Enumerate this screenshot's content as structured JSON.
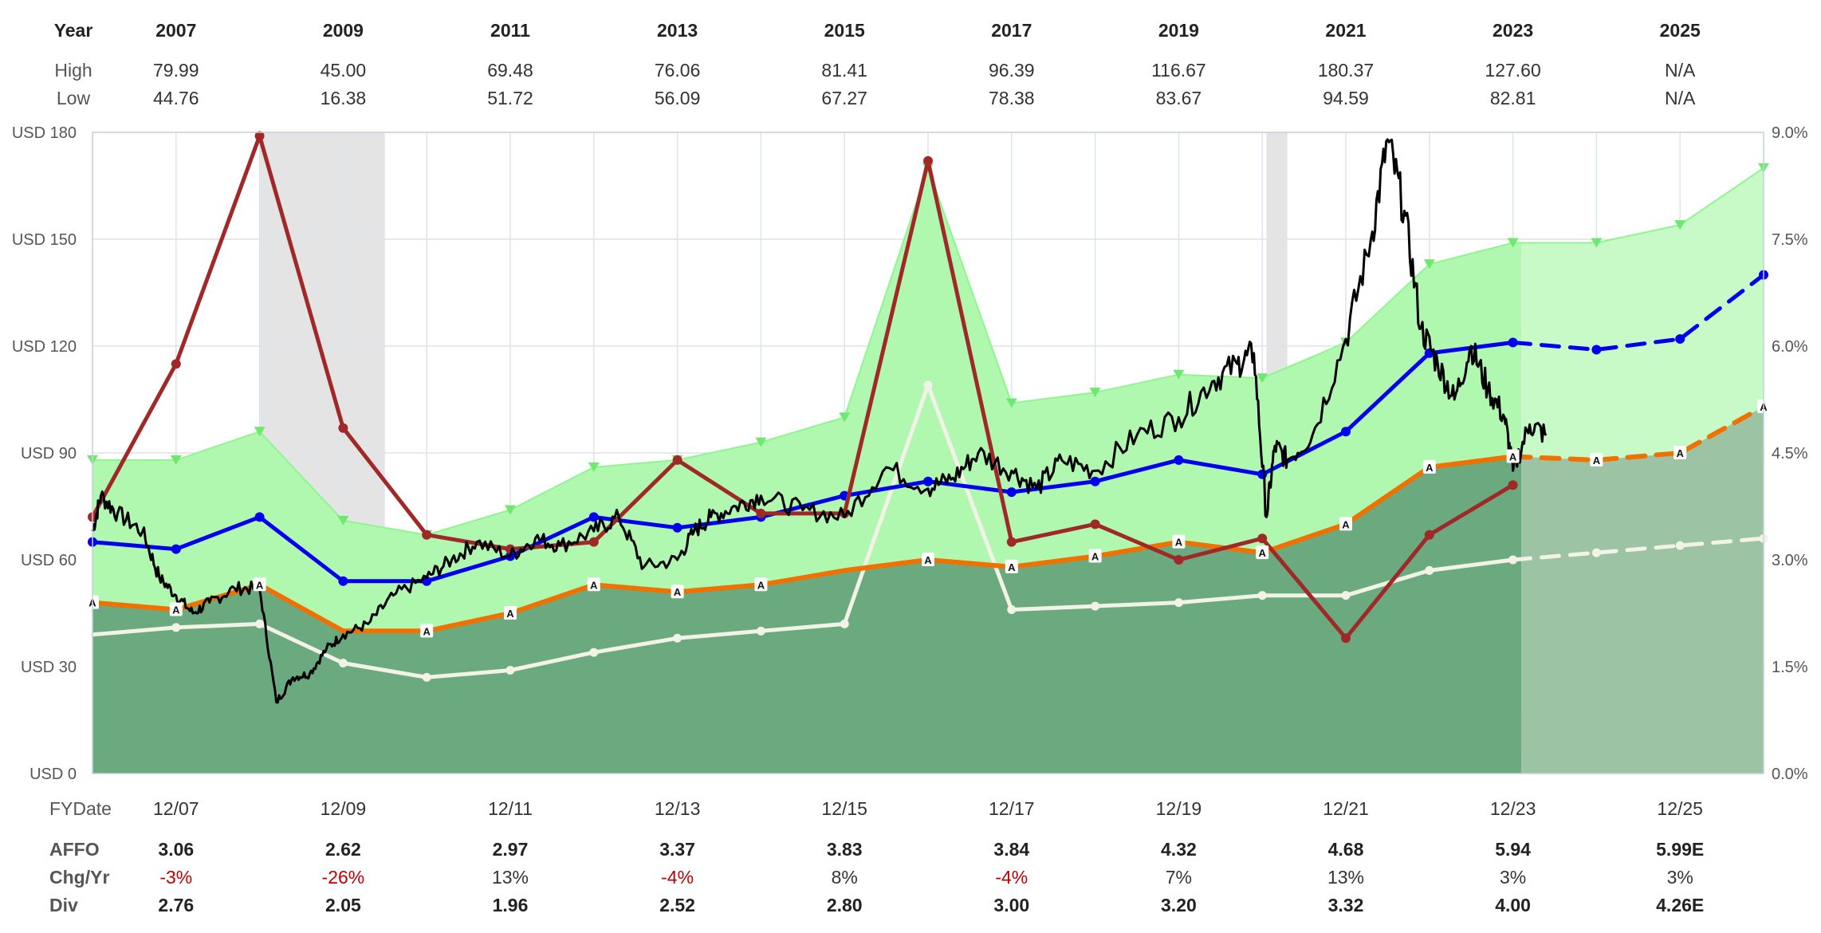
{
  "chart_data": {
    "type": "line",
    "header_table": {
      "row_labels": {
        "year": "Year",
        "high": "High",
        "low": "Low"
      },
      "years": [
        "2007",
        "2009",
        "2011",
        "2013",
        "2015",
        "2017",
        "2019",
        "2021",
        "2023",
        "2025"
      ],
      "high": [
        "79.99",
        "45.00",
        "69.48",
        "76.06",
        "81.41",
        "96.39",
        "116.67",
        "180.37",
        "127.60",
        "N/A"
      ],
      "low": [
        "44.76",
        "16.38",
        "51.72",
        "56.09",
        "67.27",
        "78.38",
        "83.67",
        "94.59",
        "82.81",
        "N/A"
      ]
    },
    "left_axis": {
      "ticks": [
        "USD 0",
        "USD 30",
        "USD 60",
        "USD 90",
        "USD 120",
        "USD 150",
        "USD 180"
      ],
      "values": [
        0,
        30,
        60,
        90,
        120,
        150,
        180
      ],
      "range": [
        0,
        180
      ]
    },
    "right_axis": {
      "ticks": [
        "0.0%",
        "1.5%",
        "3.0%",
        "4.5%",
        "6.0%",
        "7.5%",
        "9.0%"
      ],
      "values": [
        0,
        1.5,
        3,
        4.5,
        6,
        7.5,
        9
      ],
      "range": [
        0,
        9
      ]
    },
    "x_axis": {
      "label": "FYDate",
      "ticks": [
        "12/07",
        "12/09",
        "12/11",
        "12/13",
        "12/15",
        "12/17",
        "12/19",
        "12/21",
        "12/23",
        "12/25"
      ],
      "tick_years": [
        2007,
        2009,
        2011,
        2013,
        2015,
        2017,
        2019,
        2021,
        2023,
        2025
      ],
      "range": [
        2006,
        2026
      ]
    },
    "recession_bands": [
      [
        2008,
        2009.5
      ],
      [
        2020.05,
        2020.3
      ]
    ],
    "forecast_start": 2023.1,
    "series": [
      {
        "key": "upper_band",
        "color": "#8ff58f",
        "x": [
          2006,
          2007,
          2008,
          2009,
          2010,
          2011,
          2012,
          2013,
          2014,
          2015,
          2016,
          2017,
          2018,
          2019,
          2020,
          2021,
          2022,
          2023,
          2024,
          2025,
          2026
        ],
        "y": [
          88,
          88,
          96,
          71,
          67,
          74,
          86,
          88,
          93,
          100,
          170,
          104,
          107,
          112,
          111,
          121,
          143,
          149,
          149,
          154,
          170
        ]
      },
      {
        "key": "affo_valuation",
        "color": "#f07000",
        "x": [
          2006,
          2007,
          2008,
          2009,
          2010,
          2011,
          2012,
          2013,
          2014,
          2015,
          2016,
          2017,
          2018,
          2019,
          2020,
          2021,
          2022,
          2023,
          2024,
          2025,
          2026
        ],
        "y": [
          48,
          46,
          53,
          40,
          40,
          45,
          53,
          51,
          53,
          57,
          60,
          58,
          61,
          65,
          62,
          70,
          86,
          89,
          88,
          90,
          103
        ]
      },
      {
        "key": "normal_pe",
        "color": "#0000ee",
        "x": [
          2006,
          2007,
          2008,
          2009,
          2010,
          2011,
          2012,
          2013,
          2014,
          2015,
          2016,
          2017,
          2018,
          2019,
          2020,
          2021,
          2022,
          2023,
          2024,
          2025,
          2026
        ],
        "y": [
          65,
          63,
          72,
          54,
          54,
          61,
          72,
          69,
          72,
          78,
          82,
          79,
          82,
          88,
          84,
          96,
          118,
          121,
          119,
          122,
          140
        ]
      },
      {
        "key": "dividend_yield",
        "color": "#a02828",
        "x": [
          2006,
          2007,
          2008,
          2009,
          2010,
          2011,
          2012,
          2013,
          2014,
          2015,
          2016,
          2017,
          2018,
          2019,
          2020,
          2021,
          2022,
          2023
        ],
        "y": [
          72,
          115,
          179,
          97,
          67,
          63,
          65,
          88,
          73,
          73,
          172,
          65,
          70,
          60,
          66,
          38,
          67,
          81
        ]
      },
      {
        "key": "dividend_line",
        "color": "#f2f2e6",
        "x": [
          2006,
          2007,
          2008,
          2009,
          2010,
          2011,
          2012,
          2013,
          2014,
          2015,
          2016,
          2017,
          2018,
          2019,
          2020,
          2021,
          2022,
          2023,
          2024,
          2025,
          2026
        ],
        "y": [
          39,
          41,
          42,
          31,
          27,
          29,
          34,
          38,
          40,
          42,
          109,
          46,
          47,
          48,
          50,
          50,
          57,
          60,
          62,
          64,
          66
        ]
      },
      {
        "key": "price",
        "color": "#000000",
        "x": [
          2006,
          2006.1,
          2006.3,
          2006.6,
          2006.8,
          2007,
          2007.2,
          2007.4,
          2007.7,
          2008,
          2008.2,
          2008.4,
          2008.6,
          2008.8,
          2009,
          2009.3,
          2009.6,
          2010,
          2010.3,
          2010.6,
          2011,
          2011.3,
          2011.6,
          2012,
          2012.3,
          2012.6,
          2013,
          2013.2,
          2013.4,
          2013.7,
          2014,
          2014.5,
          2015,
          2015.5,
          2016,
          2016.3,
          2016.6,
          2017,
          2017.3,
          2017.6,
          2018,
          2018.5,
          2019,
          2019.4,
          2019.7,
          2019.9,
          2020.05,
          2020.15,
          2020.3,
          2020.6,
          2021,
          2021.3,
          2021.5,
          2021.7,
          2021.9,
          2022.1,
          2022.3,
          2022.5,
          2022.7,
          2022.9,
          2023,
          2023.2,
          2023.4
        ],
        "y": [
          68,
          78,
          73,
          68,
          55,
          50,
          45,
          48,
          52,
          52,
          20,
          27,
          28,
          35,
          39,
          42,
          50,
          55,
          60,
          65,
          61,
          66,
          64,
          68,
          72,
          58,
          60,
          68,
          72,
          75,
          78,
          74,
          72,
          86,
          80,
          83,
          90,
          85,
          80,
          88,
          85,
          95,
          100,
          110,
          115,
          118,
          72,
          92,
          88,
          95,
          122,
          150,
          178,
          158,
          125,
          115,
          105,
          120,
          108,
          100,
          85,
          98,
          95
        ]
      }
    ],
    "a_markers": [
      {
        "x": 2006,
        "y": 48
      },
      {
        "x": 2007,
        "y": 46
      },
      {
        "x": 2008,
        "y": 53
      },
      {
        "x": 2010,
        "y": 40
      },
      {
        "x": 2011,
        "y": 45
      },
      {
        "x": 2012,
        "y": 53
      },
      {
        "x": 2013,
        "y": 51
      },
      {
        "x": 2014,
        "y": 53
      },
      {
        "x": 2016,
        "y": 60
      },
      {
        "x": 2017,
        "y": 58
      },
      {
        "x": 2018,
        "y": 61
      },
      {
        "x": 2019,
        "y": 65
      },
      {
        "x": 2020,
        "y": 62
      },
      {
        "x": 2021,
        "y": 70
      },
      {
        "x": 2022,
        "y": 86
      },
      {
        "x": 2023,
        "y": 89
      },
      {
        "x": 2024,
        "y": 88
      },
      {
        "x": 2025,
        "y": 90
      },
      {
        "x": 2026,
        "y": 103
      }
    ],
    "a_label": "A",
    "footer_table": {
      "row_labels": {
        "affo": "AFFO",
        "chg": "Chg/Yr",
        "div": "Div"
      },
      "affo": [
        "3.06",
        "2.62",
        "2.97",
        "3.37",
        "3.83",
        "3.84",
        "4.32",
        "4.68",
        "5.94",
        "5.99E"
      ],
      "chg": [
        "-3%",
        "-26%",
        "13%",
        "-4%",
        "8%",
        "-4%",
        "7%",
        "13%",
        "3%",
        "3%"
      ],
      "chg_negative": [
        true,
        true,
        false,
        true,
        false,
        true,
        false,
        false,
        false,
        false
      ],
      "div": [
        "2.76",
        "2.05",
        "1.96",
        "2.52",
        "2.80",
        "3.00",
        "3.20",
        "3.32",
        "4.00",
        "4.26E"
      ]
    },
    "colors": {
      "upper_fill": "#b0f8b0",
      "lower_fill": "#6aaa7e",
      "forecast_upper_fill": "#c8fac8",
      "forecast_lower_fill": "#9cc4a4",
      "recession": "#e4e4e4",
      "grid": "#dde3ea"
    }
  }
}
